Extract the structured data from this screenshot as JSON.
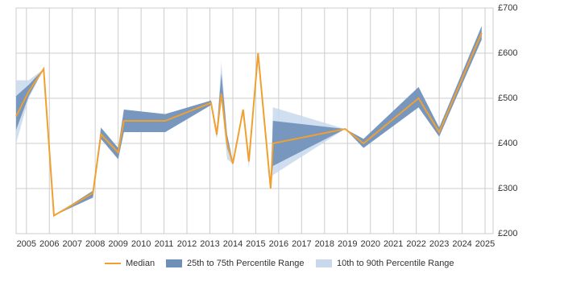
{
  "chart_data": {
    "type": "line",
    "x": [
      2004.55,
      2005.1,
      2005.75,
      2006.2,
      2007.9,
      2008.25,
      2009.0,
      2009.25,
      2011.05,
      2013.05,
      2013.3,
      2013.5,
      2013.75,
      2014.0,
      2014.45,
      2014.7,
      2015.1,
      2015.65,
      2015.75,
      2018.9,
      2019.7,
      2022.1,
      2023.0,
      2024.85
    ],
    "series": [
      {
        "name": "Median",
        "color": "#f0a030",
        "values": [
          460,
          515,
          565,
          240,
          290,
          420,
          380,
          450,
          450,
          490,
          420,
          510,
          400,
          355,
          475,
          360,
          600,
          300,
          400,
          432,
          400,
          500,
          425,
          645
        ]
      }
    ],
    "bands": [
      {
        "name": "10th to 90th Percentile Range",
        "color": "#c8d9ec",
        "lower": [
          400,
          500,
          565,
          240,
          280,
          410,
          365,
          425,
          425,
          485,
          410,
          500,
          365,
          355,
          470,
          345,
          600,
          300,
          330,
          432,
          390,
          480,
          415,
          630
        ],
        "upper": [
          540,
          540,
          565,
          240,
          295,
          435,
          390,
          475,
          465,
          495,
          430,
          580,
          420,
          360,
          475,
          370,
          600,
          300,
          480,
          432,
          410,
          525,
          435,
          660
        ]
      },
      {
        "name": "25th to 75th Percentile Range",
        "color": "#6e8fb8",
        "lower": [
          430,
          505,
          565,
          240,
          280,
          410,
          365,
          425,
          425,
          485,
          415,
          500,
          390,
          355,
          475,
          360,
          600,
          300,
          350,
          432,
          390,
          480,
          415,
          630
        ],
        "upper": [
          505,
          530,
          565,
          240,
          295,
          435,
          390,
          475,
          465,
          495,
          430,
          555,
          420,
          360,
          475,
          360,
          600,
          300,
          450,
          432,
          410,
          525,
          435,
          660
        ]
      }
    ],
    "legend_order": [
      0,
      1,
      0
    ],
    "xlim": [
      2004.55,
      2025.35
    ],
    "xticks": [
      2005,
      2006,
      2007,
      2008,
      2009,
      2010,
      2011,
      2012,
      2013,
      2014,
      2015,
      2016,
      2017,
      2018,
      2019,
      2020,
      2021,
      2022,
      2023,
      2024,
      2025
    ],
    "ylim": [
      200,
      700
    ],
    "yticks": [
      {
        "value": 200,
        "label": "£200"
      },
      {
        "value": 300,
        "label": "£300"
      },
      {
        "value": 400,
        "label": "£400"
      },
      {
        "value": 500,
        "label": "£500"
      },
      {
        "value": 600,
        "label": "£600"
      },
      {
        "value": 700,
        "label": "£700"
      }
    ],
    "grid": true
  }
}
